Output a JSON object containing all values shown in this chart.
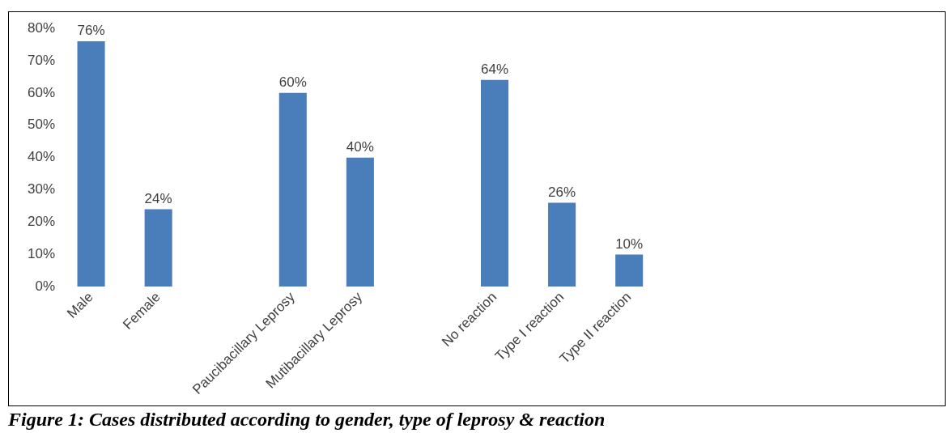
{
  "chart_data": {
    "type": "bar",
    "title": "Figure 1: Cases distributed according to gender, type of leprosy & reaction",
    "categories": [
      "Male",
      "Female",
      null,
      "Paucibacillary Leprosy",
      "Mutibacillary Leprosy",
      null,
      "No reaction",
      "Type I reaction",
      "Type II reaction",
      null,
      null,
      null,
      null
    ],
    "values": [
      76,
      24,
      null,
      60,
      40,
      null,
      64,
      26,
      10,
      null,
      null,
      null,
      null
    ],
    "value_labels": [
      "76%",
      "24%",
      null,
      "60%",
      "40%",
      null,
      "64%",
      "26%",
      "10%",
      null,
      null,
      null,
      null
    ],
    "color": "#4a7ebb",
    "ylim": [
      0,
      80
    ],
    "yticks": [
      {
        "value": 0,
        "label": "0%"
      },
      {
        "value": 10,
        "label": "10%"
      },
      {
        "value": 20,
        "label": "20%"
      },
      {
        "value": 30,
        "label": "30%"
      },
      {
        "value": 40,
        "label": "40%"
      },
      {
        "value": 50,
        "label": "50%"
      },
      {
        "value": 60,
        "label": "60%"
      },
      {
        "value": 70,
        "label": "70%"
      },
      {
        "value": 80,
        "label": "80%"
      }
    ],
    "grid": false,
    "legend": false
  }
}
